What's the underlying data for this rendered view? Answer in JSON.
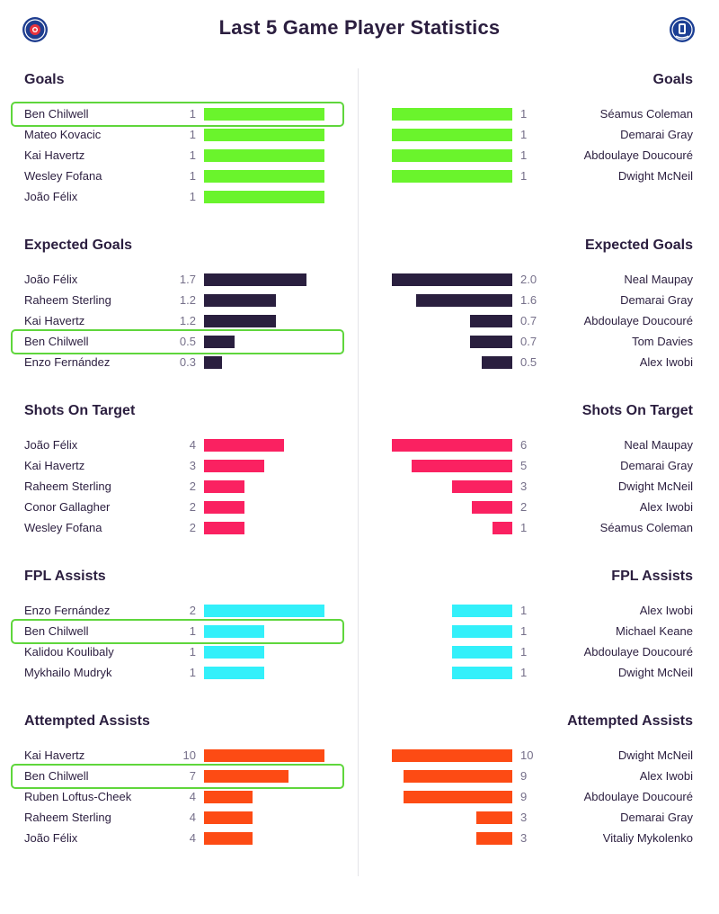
{
  "page": {
    "title": "Last 5 Game Player Statistics"
  },
  "icons": {
    "left_badge": "chelsea-crest-icon",
    "right_badge": "everton-crest-icon"
  },
  "colors": {
    "goals": "#6af42c",
    "expected_goals": "#2a1f3f",
    "shots_on_target": "#fa2161",
    "fpl_assists": "#33f0fa",
    "attempted_assists": "#fd4b14",
    "highlight": "#5fd63c"
  },
  "chart_data": {
    "type": "bar",
    "orientation": "horizontal",
    "sections": [
      {
        "key": "goals",
        "title": "Goals",
        "max": 1,
        "left": [
          {
            "name": "Ben Chilwell",
            "value": 1,
            "label": "1",
            "highlight": true
          },
          {
            "name": "Mateo Kovacic",
            "value": 1,
            "label": "1"
          },
          {
            "name": "Kai Havertz",
            "value": 1,
            "label": "1"
          },
          {
            "name": "Wesley Fofana",
            "value": 1,
            "label": "1"
          },
          {
            "name": "João Félix",
            "value": 1,
            "label": "1"
          }
        ],
        "right": [
          {
            "name": "Séamus Coleman",
            "value": 1,
            "label": "1"
          },
          {
            "name": "Demarai Gray",
            "value": 1,
            "label": "1"
          },
          {
            "name": "Abdoulaye Doucouré",
            "value": 1,
            "label": "1"
          },
          {
            "name": "Dwight McNeil",
            "value": 1,
            "label": "1"
          }
        ]
      },
      {
        "key": "expected_goals",
        "title": "Expected Goals",
        "max": 2.0,
        "left": [
          {
            "name": "João Félix",
            "value": 1.7,
            "label": "1.7"
          },
          {
            "name": "Raheem Sterling",
            "value": 1.2,
            "label": "1.2"
          },
          {
            "name": "Kai Havertz",
            "value": 1.2,
            "label": "1.2"
          },
          {
            "name": "Ben Chilwell",
            "value": 0.5,
            "label": "0.5",
            "highlight": true
          },
          {
            "name": "Enzo Fernández",
            "value": 0.3,
            "label": "0.3"
          }
        ],
        "right": [
          {
            "name": "Neal Maupay",
            "value": 2.0,
            "label": "2.0"
          },
          {
            "name": "Demarai Gray",
            "value": 1.6,
            "label": "1.6"
          },
          {
            "name": "Abdoulaye Doucouré",
            "value": 0.7,
            "label": "0.7"
          },
          {
            "name": "Tom Davies",
            "value": 0.7,
            "label": "0.7"
          },
          {
            "name": "Alex Iwobi",
            "value": 0.5,
            "label": "0.5"
          }
        ]
      },
      {
        "key": "shots_on_target",
        "title": "Shots On Target",
        "max": 6,
        "left": [
          {
            "name": "João Félix",
            "value": 4,
            "label": "4"
          },
          {
            "name": "Kai Havertz",
            "value": 3,
            "label": "3"
          },
          {
            "name": "Raheem Sterling",
            "value": 2,
            "label": "2"
          },
          {
            "name": "Conor Gallagher",
            "value": 2,
            "label": "2"
          },
          {
            "name": "Wesley Fofana",
            "value": 2,
            "label": "2"
          }
        ],
        "right": [
          {
            "name": "Neal Maupay",
            "value": 6,
            "label": "6"
          },
          {
            "name": "Demarai Gray",
            "value": 5,
            "label": "5"
          },
          {
            "name": "Dwight McNeil",
            "value": 3,
            "label": "3"
          },
          {
            "name": "Alex Iwobi",
            "value": 2,
            "label": "2"
          },
          {
            "name": "Séamus Coleman",
            "value": 1,
            "label": "1"
          }
        ]
      },
      {
        "key": "fpl_assists",
        "title": "FPL Assists",
        "max": 2,
        "left": [
          {
            "name": "Enzo Fernández",
            "value": 2,
            "label": "2"
          },
          {
            "name": "Ben Chilwell",
            "value": 1,
            "label": "1",
            "highlight": true
          },
          {
            "name": "Kalidou Koulibaly",
            "value": 1,
            "label": "1"
          },
          {
            "name": "Mykhailo Mudryk",
            "value": 1,
            "label": "1"
          }
        ],
        "right": [
          {
            "name": "Alex Iwobi",
            "value": 1,
            "label": "1"
          },
          {
            "name": "Michael Keane",
            "value": 1,
            "label": "1"
          },
          {
            "name": "Abdoulaye Doucouré",
            "value": 1,
            "label": "1"
          },
          {
            "name": "Dwight McNeil",
            "value": 1,
            "label": "1"
          }
        ]
      },
      {
        "key": "attempted_assists",
        "title": "Attempted Assists",
        "max": 10,
        "left": [
          {
            "name": "Kai Havertz",
            "value": 10,
            "label": "10"
          },
          {
            "name": "Ben Chilwell",
            "value": 7,
            "label": "7",
            "highlight": true
          },
          {
            "name": "Ruben Loftus-Cheek",
            "value": 4,
            "label": "4"
          },
          {
            "name": "Raheem Sterling",
            "value": 4,
            "label": "4"
          },
          {
            "name": "João Félix",
            "value": 4,
            "label": "4"
          }
        ],
        "right": [
          {
            "name": "Dwight McNeil",
            "value": 10,
            "label": "10"
          },
          {
            "name": "Alex Iwobi",
            "value": 9,
            "label": "9"
          },
          {
            "name": "Abdoulaye Doucouré",
            "value": 9,
            "label": "9"
          },
          {
            "name": "Demarai Gray",
            "value": 3,
            "label": "3"
          },
          {
            "name": "Vitaliy Mykolenko",
            "value": 3,
            "label": "3"
          }
        ]
      }
    ]
  }
}
